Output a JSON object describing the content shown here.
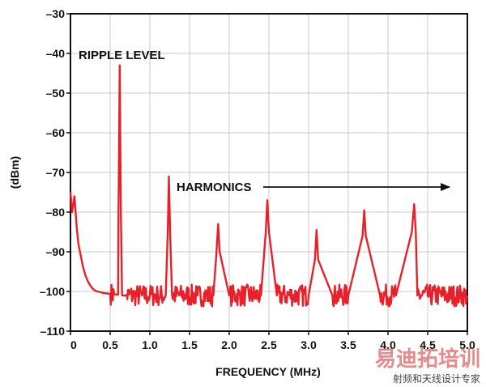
{
  "chart_data": {
    "type": "line",
    "title": "",
    "xlabel": "FREQUENCY (MHz)",
    "ylabel": "(dBm)",
    "xlim": [
      0,
      5.0
    ],
    "ylim": [
      -110,
      -30
    ],
    "x_ticks": [
      0,
      0.5,
      1.0,
      1.5,
      2.0,
      2.5,
      3.0,
      3.5,
      4.0,
      4.5,
      5.0
    ],
    "x_tick_labels": [
      "0",
      "0.5",
      "1.0",
      "1.5",
      "2.0",
      "2.5",
      "3.0",
      "3.5",
      "4.0",
      "4.5",
      "5.0"
    ],
    "y_ticks": [
      -30,
      -40,
      -50,
      -60,
      -70,
      -80,
      -90,
      -100,
      -110
    ],
    "y_tick_labels": [
      "–30",
      "–40",
      "–50",
      "–60",
      "–70",
      "–80",
      "–90",
      "–100",
      "–110"
    ],
    "grid": true,
    "line_color": "#e8202a",
    "series": [
      {
        "x": [
          0.0,
          0.02,
          0.05,
          0.08,
          0.1,
          0.13,
          0.16,
          0.19,
          0.22,
          0.25,
          0.28,
          0.31,
          0.34,
          0.38,
          0.42,
          0.46,
          0.5,
          0.55,
          0.6,
          0.605,
          0.62,
          0.635,
          0.65,
          0.7,
          0.8,
          0.9,
          1.0,
          1.1,
          1.2,
          1.225,
          1.24,
          1.255,
          1.28,
          1.4,
          1.6,
          1.8,
          1.84,
          1.86,
          1.88,
          2.0,
          2.2,
          2.4,
          2.46,
          2.48,
          2.5,
          2.6,
          2.8,
          3.0,
          3.08,
          3.1,
          3.12,
          3.3,
          3.5,
          3.68,
          3.7,
          3.72,
          3.9,
          4.1,
          4.3,
          4.33,
          4.35,
          4.37,
          4.5,
          4.7,
          4.9,
          5.0
        ],
        "y": [
          -75,
          -80,
          -76,
          -84,
          -88,
          -91,
          -94,
          -96,
          -97.5,
          -98.5,
          -99.3,
          -99.8,
          -100,
          -100.2,
          -100.4,
          -100.5,
          -100.6,
          -100.7,
          -100.8,
          -80,
          -43,
          -80,
          -101,
          -101,
          -101,
          -101,
          -101,
          -101,
          -101,
          -85,
          -71,
          -85,
          -101,
          -101,
          -101,
          -101,
          -90,
          -83,
          -90,
          -101,
          -101,
          -101,
          -85,
          -77,
          -85,
          -101,
          -101,
          -101,
          -92,
          -84.5,
          -92,
          -101,
          -101,
          -86,
          -79.5,
          -86,
          -101,
          -101,
          -85,
          -78,
          -85,
          -101,
          -101,
          -101,
          -101,
          -101
        ]
      }
    ],
    "annotations": {
      "ripple": "RIPPLE LEVEL",
      "harmonics": "HARMONICS"
    }
  },
  "watermark": {
    "main": "易迪拓培训",
    "sub": "射频和天线设计专家"
  }
}
